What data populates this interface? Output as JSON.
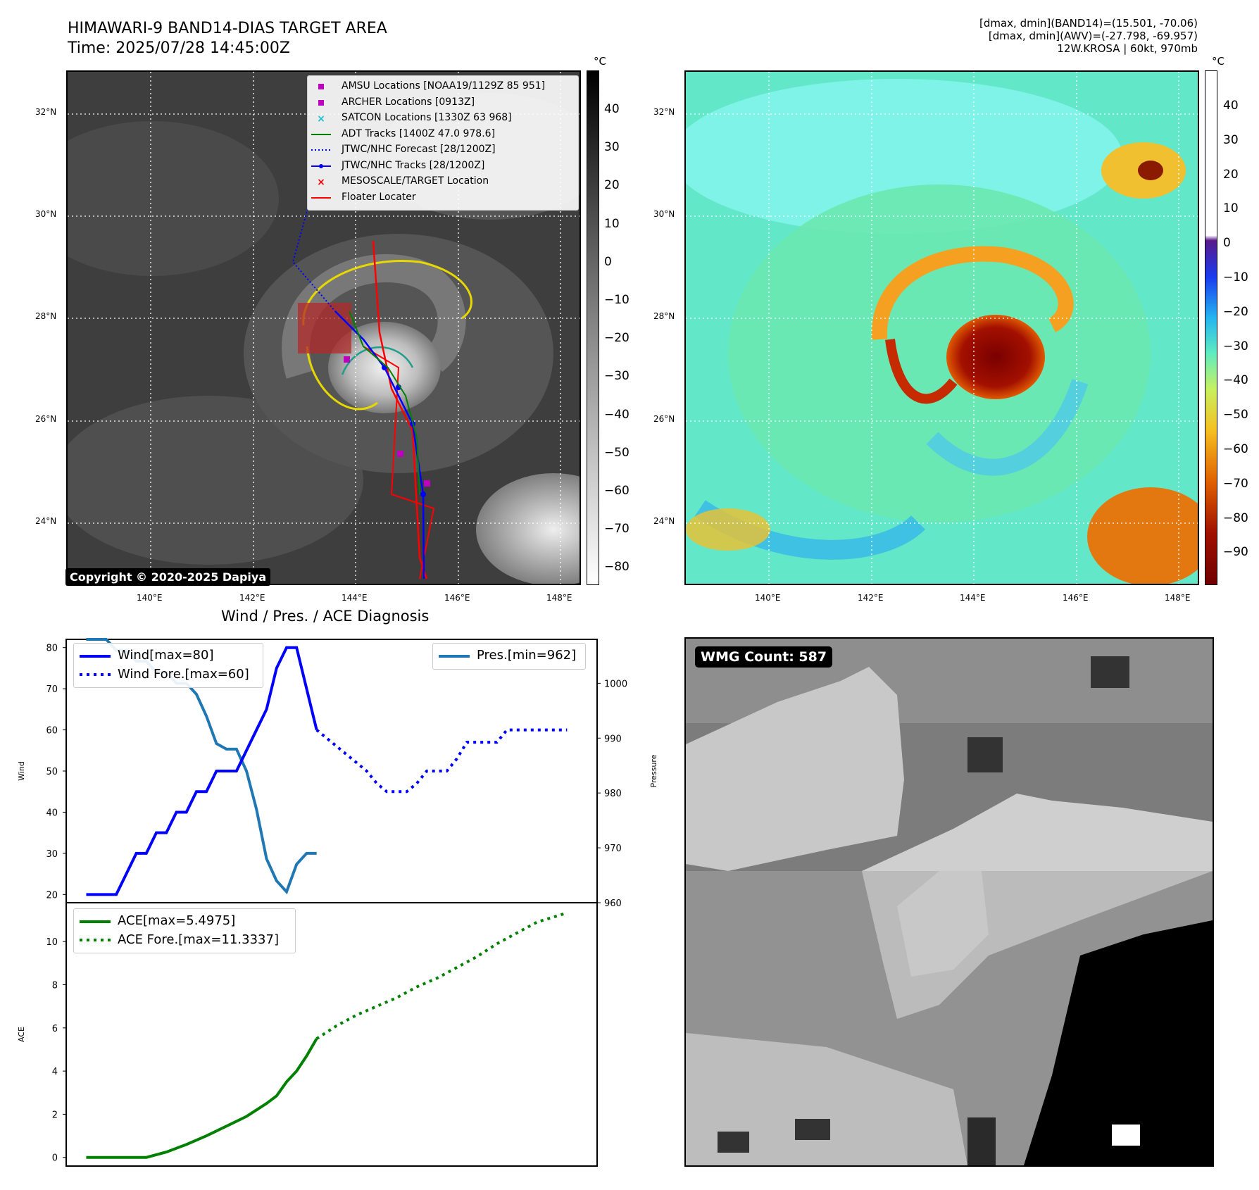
{
  "header": {
    "title_line1": "HIMAWARI-9 BAND14-DIAS TARGET AREA",
    "title_line2": "Time: 2025/07/28 14:45:00Z",
    "info_line1": "[dmax, dmin](BAND14)=(15.501, -70.06)",
    "info_line2": "[dmax, dmin](AWV)=(-27.798, -69.957)",
    "info_line3": "12W.KROSA | 60kt, 970mb"
  },
  "copyright": "Copyright © 2020-2025 Dapiya",
  "wmg_count": "WMG Count: 587",
  "map_axes": {
    "lat_labels": [
      "32°N",
      "30°N",
      "28°N",
      "26°N",
      "24°N"
    ],
    "lon_labels": [
      "140°E",
      "142°E",
      "144°E",
      "146°E",
      "148°E"
    ]
  },
  "colorbar_left": {
    "unit": "°C",
    "ticks": [
      "40",
      "30",
      "20",
      "10",
      "0",
      "−10",
      "−20",
      "−30",
      "−40",
      "−50",
      "−60",
      "−70",
      "−80"
    ]
  },
  "colorbar_right": {
    "unit": "°C",
    "ticks": [
      "40",
      "30",
      "20",
      "10",
      "0",
      "−10",
      "−20",
      "−30",
      "−40",
      "−50",
      "−60",
      "−70",
      "−80",
      "−90"
    ]
  },
  "map_legend": [
    {
      "label": "AMSU Locations [NOAA19/1129Z 85 951]",
      "kind": "square",
      "color": "#bf00bf"
    },
    {
      "label": "ARCHER Locations [0913Z]",
      "kind": "square",
      "color": "#bf00bf"
    },
    {
      "label": "SATCON Locations [1330Z 63 968]",
      "kind": "x",
      "color": "#17becf"
    },
    {
      "label": "ADT Tracks [1400Z 47.0 978.6]",
      "kind": "line",
      "color": "#008000"
    },
    {
      "label": "JTWC/NHC Forecast [28/1200Z]",
      "kind": "dotted",
      "color": "#0000ff"
    },
    {
      "label": "JTWC/NHC Tracks [28/1200Z]",
      "kind": "line-dot",
      "color": "#0000ff"
    },
    {
      "label": "MESOSCALE/TARGET Location",
      "kind": "x",
      "color": "#ff0000"
    },
    {
      "label": "Floater Locater",
      "kind": "line",
      "color": "#ff0000"
    }
  ],
  "chart_data": [
    {
      "type": "line",
      "title": "Wind / Pres. / ACE Diagnosis",
      "ylabel": "Wind",
      "y2label": "Pressure",
      "ylim": [
        18,
        82
      ],
      "y2lim": [
        960,
        1008
      ],
      "yticks": [
        20,
        30,
        40,
        50,
        60,
        70,
        80
      ],
      "y2ticks": [
        960,
        970,
        980,
        990,
        1000
      ],
      "x": [
        0,
        1,
        2,
        3,
        4,
        5,
        6,
        7,
        8,
        9,
        10,
        11,
        12,
        13,
        14,
        15,
        16,
        17,
        18,
        19,
        20,
        21,
        22,
        23,
        24,
        25,
        26,
        27,
        28,
        29,
        30,
        31,
        32,
        33,
        34,
        35,
        36,
        37,
        38,
        39,
        40,
        41,
        42,
        43,
        44,
        45,
        46,
        47,
        48,
        49,
        50
      ],
      "series": [
        {
          "name": "Wind[max=80]",
          "axis": "left",
          "style": "solid",
          "color": "#0000ff",
          "x": [
            0,
            3,
            4,
            5,
            6,
            7,
            8,
            9,
            10,
            11,
            12,
            13,
            14,
            15,
            16,
            17,
            18,
            19,
            20,
            21,
            22,
            23
          ],
          "values": [
            20,
            20,
            25,
            30,
            30,
            35,
            35,
            40,
            40,
            45,
            45,
            50,
            50,
            50,
            55,
            60,
            65,
            75,
            80,
            80,
            70,
            60
          ]
        },
        {
          "name": "Wind Fore.[max=60]",
          "axis": "left",
          "style": "dotted",
          "color": "#0000ff",
          "x": [
            23,
            24,
            25,
            26,
            27,
            28,
            29,
            30,
            31,
            32,
            33,
            34,
            35,
            36,
            37,
            38,
            39,
            40,
            41,
            42,
            43,
            44,
            45,
            46,
            47,
            48
          ],
          "values": [
            60,
            58,
            56,
            54,
            52,
            50,
            47,
            45,
            45,
            45,
            47,
            50,
            50,
            50,
            53,
            57,
            57,
            57,
            57,
            60,
            60,
            60,
            60,
            60,
            60,
            60
          ]
        },
        {
          "name": "Pres.[min=962]",
          "axis": "right",
          "style": "solid",
          "color": "#1f77b4",
          "x": [
            0,
            1,
            2,
            3,
            4,
            5,
            6,
            7,
            8,
            9,
            10,
            11,
            12,
            13,
            14,
            15,
            16,
            17,
            18,
            19,
            20,
            21,
            22,
            23
          ],
          "values": [
            1008,
            1008,
            1008,
            1006,
            1006,
            1004,
            1004,
            1002,
            1002,
            1000,
            1000,
            998,
            994,
            989,
            988,
            988,
            984,
            977,
            968,
            964,
            962,
            967,
            969,
            969
          ]
        }
      ]
    },
    {
      "type": "line",
      "ylabel": "ACE",
      "ylim": [
        -0.4,
        11.8
      ],
      "yticks": [
        0,
        2,
        4,
        6,
        8,
        10
      ],
      "series": [
        {
          "name": "ACE[max=5.4975]",
          "style": "solid",
          "color": "#008000",
          "x": [
            0,
            2,
            4,
            6,
            8,
            10,
            12,
            14,
            16,
            18,
            19,
            20,
            21,
            22,
            23
          ],
          "values": [
            0,
            0,
            0,
            0,
            0.25,
            0.6,
            1.0,
            1.45,
            1.9,
            2.5,
            2.85,
            3.5,
            4.0,
            4.7,
            5.5
          ]
        },
        {
          "name": "ACE Fore.[max=11.3337]",
          "style": "dotted",
          "color": "#008000",
          "x": [
            23,
            25,
            27,
            29,
            31,
            33,
            35,
            37,
            39,
            41,
            43,
            45,
            48
          ],
          "values": [
            5.5,
            6.1,
            6.6,
            7.0,
            7.4,
            7.9,
            8.3,
            8.8,
            9.3,
            9.9,
            10.4,
            10.9,
            11.33
          ]
        }
      ]
    }
  ]
}
